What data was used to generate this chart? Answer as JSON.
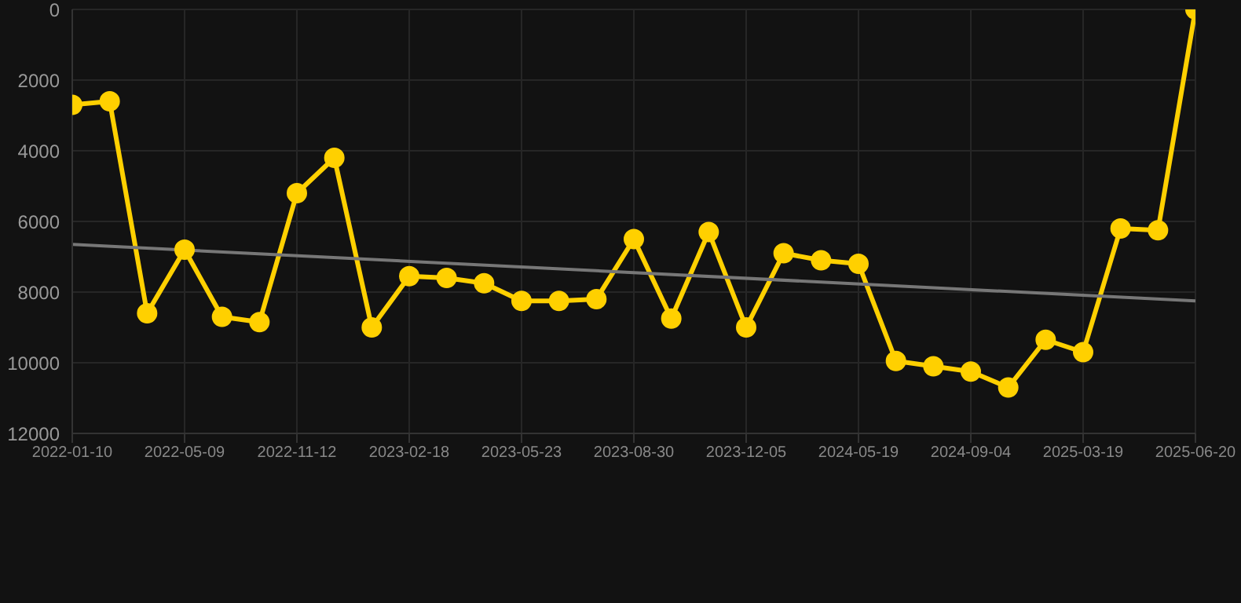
{
  "chart_data": {
    "type": "line",
    "categories": [
      "2022-01-10",
      null,
      null,
      "2022-05-09",
      null,
      null,
      "2022-11-12",
      null,
      null,
      "2023-02-18",
      null,
      null,
      "2023-05-23",
      null,
      null,
      "2023-08-30",
      null,
      null,
      "2023-12-05",
      null,
      null,
      "2024-05-19",
      null,
      null,
      "2024-09-04",
      null,
      null,
      "2025-03-19",
      null,
      null,
      "2025-06-20"
    ],
    "series": [
      {
        "color": "#ffd000",
        "marker": "circle",
        "values": [
          2700,
          2600,
          8600,
          6800,
          8700,
          8850,
          5200,
          4200,
          9000,
          7550,
          7600,
          7750,
          8250,
          8250,
          8200,
          6500,
          8750,
          6300,
          9000,
          6900,
          7100,
          7200,
          9950,
          10100,
          10250,
          10700,
          9350,
          9700,
          6200,
          6250,
          0
        ]
      },
      {
        "color": "#777777",
        "marker": "none",
        "values": [
          6650,
          null,
          null,
          null,
          null,
          null,
          null,
          null,
          null,
          null,
          null,
          null,
          null,
          null,
          null,
          null,
          null,
          null,
          null,
          null,
          null,
          null,
          null,
          null,
          null,
          null,
          null,
          null,
          null,
          null,
          8250
        ]
      }
    ],
    "ylim": [
      12000,
      0
    ],
    "yticks": [
      0,
      2000,
      4000,
      6000,
      8000,
      10000,
      12000
    ],
    "grid": true,
    "legend": false
  }
}
